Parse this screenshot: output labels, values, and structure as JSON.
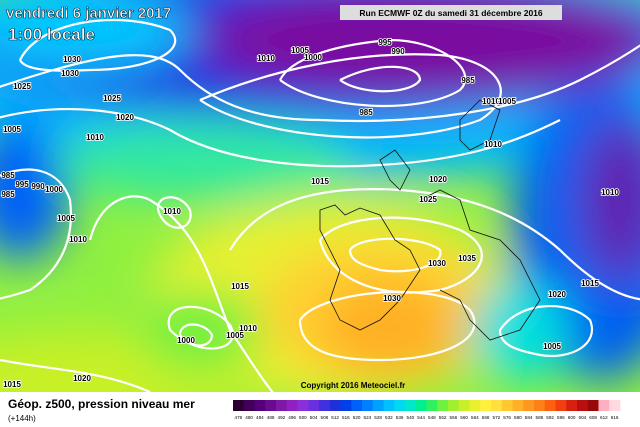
{
  "header": {
    "date": "vendredi 6 janvier 2017",
    "time": "1:00 locale",
    "run": "Run ECMWF 0Z du samedi 31 décembre 2016"
  },
  "copyright": "Copyright 2016 Meteociel.fr",
  "legend": {
    "title": "Géop. z500, pression niveau mer",
    "subtitle": "(+144h)",
    "ticks": [
      476,
      480,
      484,
      488,
      492,
      496,
      500,
      504,
      508,
      512,
      516,
      520,
      524,
      528,
      532,
      536,
      540,
      544,
      548,
      552,
      556,
      560,
      564,
      568,
      572,
      576,
      580,
      584,
      588,
      592,
      596,
      600,
      604,
      608,
      612,
      616
    ],
    "colors": [
      "#2a0030",
      "#40005a",
      "#550078",
      "#6a0a90",
      "#7e18a8",
      "#9020c0",
      "#8a30d8",
      "#6a30e0",
      "#4030e0",
      "#2030d8",
      "#0040e8",
      "#0060f8",
      "#0080ff",
      "#00a0ff",
      "#00c0ff",
      "#00d8f0",
      "#00e8c8",
      "#00f090",
      "#30f060",
      "#70f040",
      "#a0f030",
      "#c8f028",
      "#e8f030",
      "#fff040",
      "#ffe040",
      "#ffc830",
      "#ffb028",
      "#ff9820",
      "#ff8018",
      "#ff6010",
      "#f04010",
      "#d82010",
      "#b81010",
      "#980808",
      "#ffb0c0",
      "#ffd8e0"
    ]
  },
  "isobar_labels": [
    1030,
    1030,
    1025,
    1025,
    1020,
    1005,
    1010,
    985,
    995,
    990,
    1000,
    985,
    1005,
    1010,
    1010,
    1015,
    1010,
    1005,
    1000,
    995,
    990,
    985,
    985,
    1010,
    1005,
    1010,
    1020,
    1025,
    1030,
    1035,
    1030,
    1015,
    1010,
    1005,
    1000,
    1020,
    1015,
    1010,
    1005,
    1015,
    1020
  ]
}
